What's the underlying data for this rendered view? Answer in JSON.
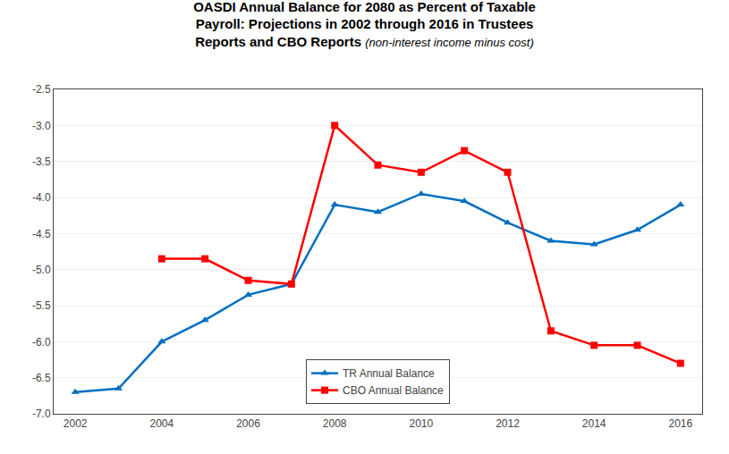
{
  "chart_data": {
    "type": "line",
    "title": "OASDI Annual Balance for 2080 as Percent of Taxable\nPayroll: Projections in 2002 through 2016 in Trustees\nReports and CBO Reports",
    "subtitle": "(non-interest income minus cost)",
    "x": [
      2002,
      2003,
      2004,
      2005,
      2006,
      2007,
      2008,
      2009,
      2010,
      2011,
      2012,
      2013,
      2014,
      2015,
      2016
    ],
    "series": [
      {
        "name": "TR Annual Balance",
        "color": "#0070C0",
        "marker": "triangle-up",
        "values": [
          -6.7,
          -6.65,
          -6.0,
          -5.7,
          -5.35,
          -5.2,
          -4.1,
          -4.2,
          -3.95,
          -4.05,
          -4.35,
          -4.6,
          -4.65,
          -4.45,
          -4.1
        ]
      },
      {
        "name": "CBO Annual Balance",
        "color": "#FF0000",
        "marker": "square",
        "values": [
          null,
          null,
          -4.85,
          -4.85,
          -5.15,
          -5.2,
          -3.0,
          -3.55,
          -3.65,
          -3.35,
          -3.65,
          -5.85,
          -6.05,
          -6.05,
          -6.3
        ]
      }
    ],
    "xlim": [
      2001.5,
      2016.5
    ],
    "xticks": [
      2002,
      2004,
      2006,
      2008,
      2010,
      2012,
      2014,
      2016
    ],
    "ylim": [
      -7.0,
      -2.5
    ],
    "yticks": [
      -2.5,
      {
        "value": -3.0,
        "label": "-3.0"
      },
      -3.5,
      {
        "value": -4.0,
        "label": "-4.0"
      },
      -4.5,
      {
        "value": -5.0,
        "label": "-5.0"
      },
      -5.5,
      {
        "value": -6.0,
        "label": "-6.0"
      },
      -6.5,
      {
        "value": -7.0,
        "label": "-7.0"
      }
    ],
    "grid": "y",
    "legend": "lower center"
  }
}
